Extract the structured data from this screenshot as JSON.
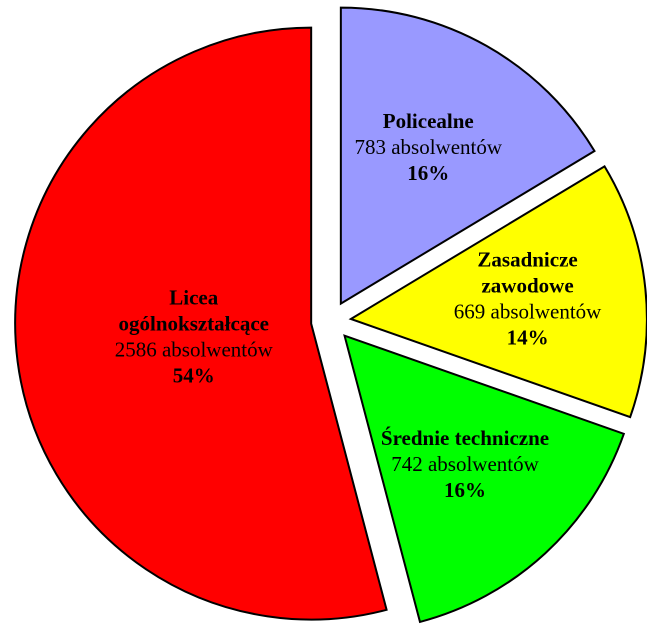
{
  "chart_data": {
    "type": "pie",
    "categories": [
      [
        "Policealne"
      ],
      [
        "Zasadnicze",
        "zawodowe"
      ],
      [
        "Średnie techniczne"
      ],
      [
        "Licea",
        "ogólnokształcące"
      ]
    ],
    "values": [
      783,
      669,
      742,
      2586
    ],
    "value_labels": [
      "783 absolwentów",
      "669 absolwentów",
      "742 absolwentów",
      "2586 absolwentów"
    ],
    "percent_labels": [
      "16%",
      "14%",
      "16%",
      "54%"
    ],
    "colors": [
      "#9999ff",
      "#ffff00",
      "#00ff00",
      "#ff0000"
    ]
  }
}
